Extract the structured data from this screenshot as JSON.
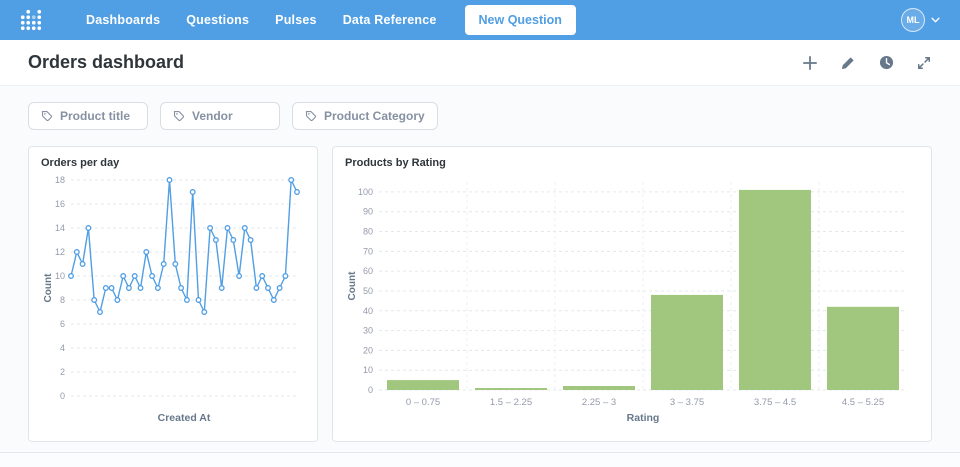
{
  "navbar": {
    "items": [
      {
        "label": "Dashboards"
      },
      {
        "label": "Questions"
      },
      {
        "label": "Pulses"
      },
      {
        "label": "Data Reference"
      }
    ],
    "new_question_label": "New Question",
    "user_initials": "ML"
  },
  "header": {
    "title": "Orders dashboard",
    "actions": [
      "add",
      "edit",
      "history",
      "fullscreen"
    ]
  },
  "filters": [
    {
      "label": "Product title",
      "icon": "tag-icon"
    },
    {
      "label": "Vendor",
      "icon": "tag-icon"
    },
    {
      "label": "Product Category",
      "icon": "tag-icon"
    }
  ],
  "chart_data": [
    {
      "type": "line",
      "title": "Orders per day",
      "xlabel": "Created At",
      "ylabel": "Count",
      "ylim": [
        0,
        18
      ],
      "ytick_step": 2,
      "values": [
        10,
        12,
        11,
        14,
        8,
        7,
        9,
        9,
        8,
        10,
        9,
        10,
        9,
        12,
        10,
        9,
        11,
        18,
        11,
        9,
        8,
        17,
        8,
        7,
        14,
        13,
        9,
        14,
        13,
        10,
        14,
        13,
        9,
        10,
        9,
        8,
        9,
        10,
        18,
        17
      ],
      "color": "#509EE3",
      "grid": "dashed-horizontal",
      "markers": true,
      "legend": "none"
    },
    {
      "type": "bar",
      "title": "Products by Rating",
      "xlabel": "Rating",
      "ylabel": "Count",
      "ylim": [
        0,
        105
      ],
      "ytick_step": 10,
      "categories": [
        "0 – 0.75",
        "1.5 – 2.25",
        "2.25 – 3",
        "3 – 3.75",
        "3.75 – 4.5",
        "4.5 – 5.25"
      ],
      "values": [
        5,
        1,
        2,
        48,
        101,
        42
      ],
      "color": "#A1C77E",
      "grid": "dashed-horizontal",
      "legend": "none"
    }
  ],
  "colors": {
    "brand": "#509EE3",
    "axis_text": "#949AAB",
    "axis_label": "#66788A",
    "grid_line": "#E3E7EA"
  }
}
